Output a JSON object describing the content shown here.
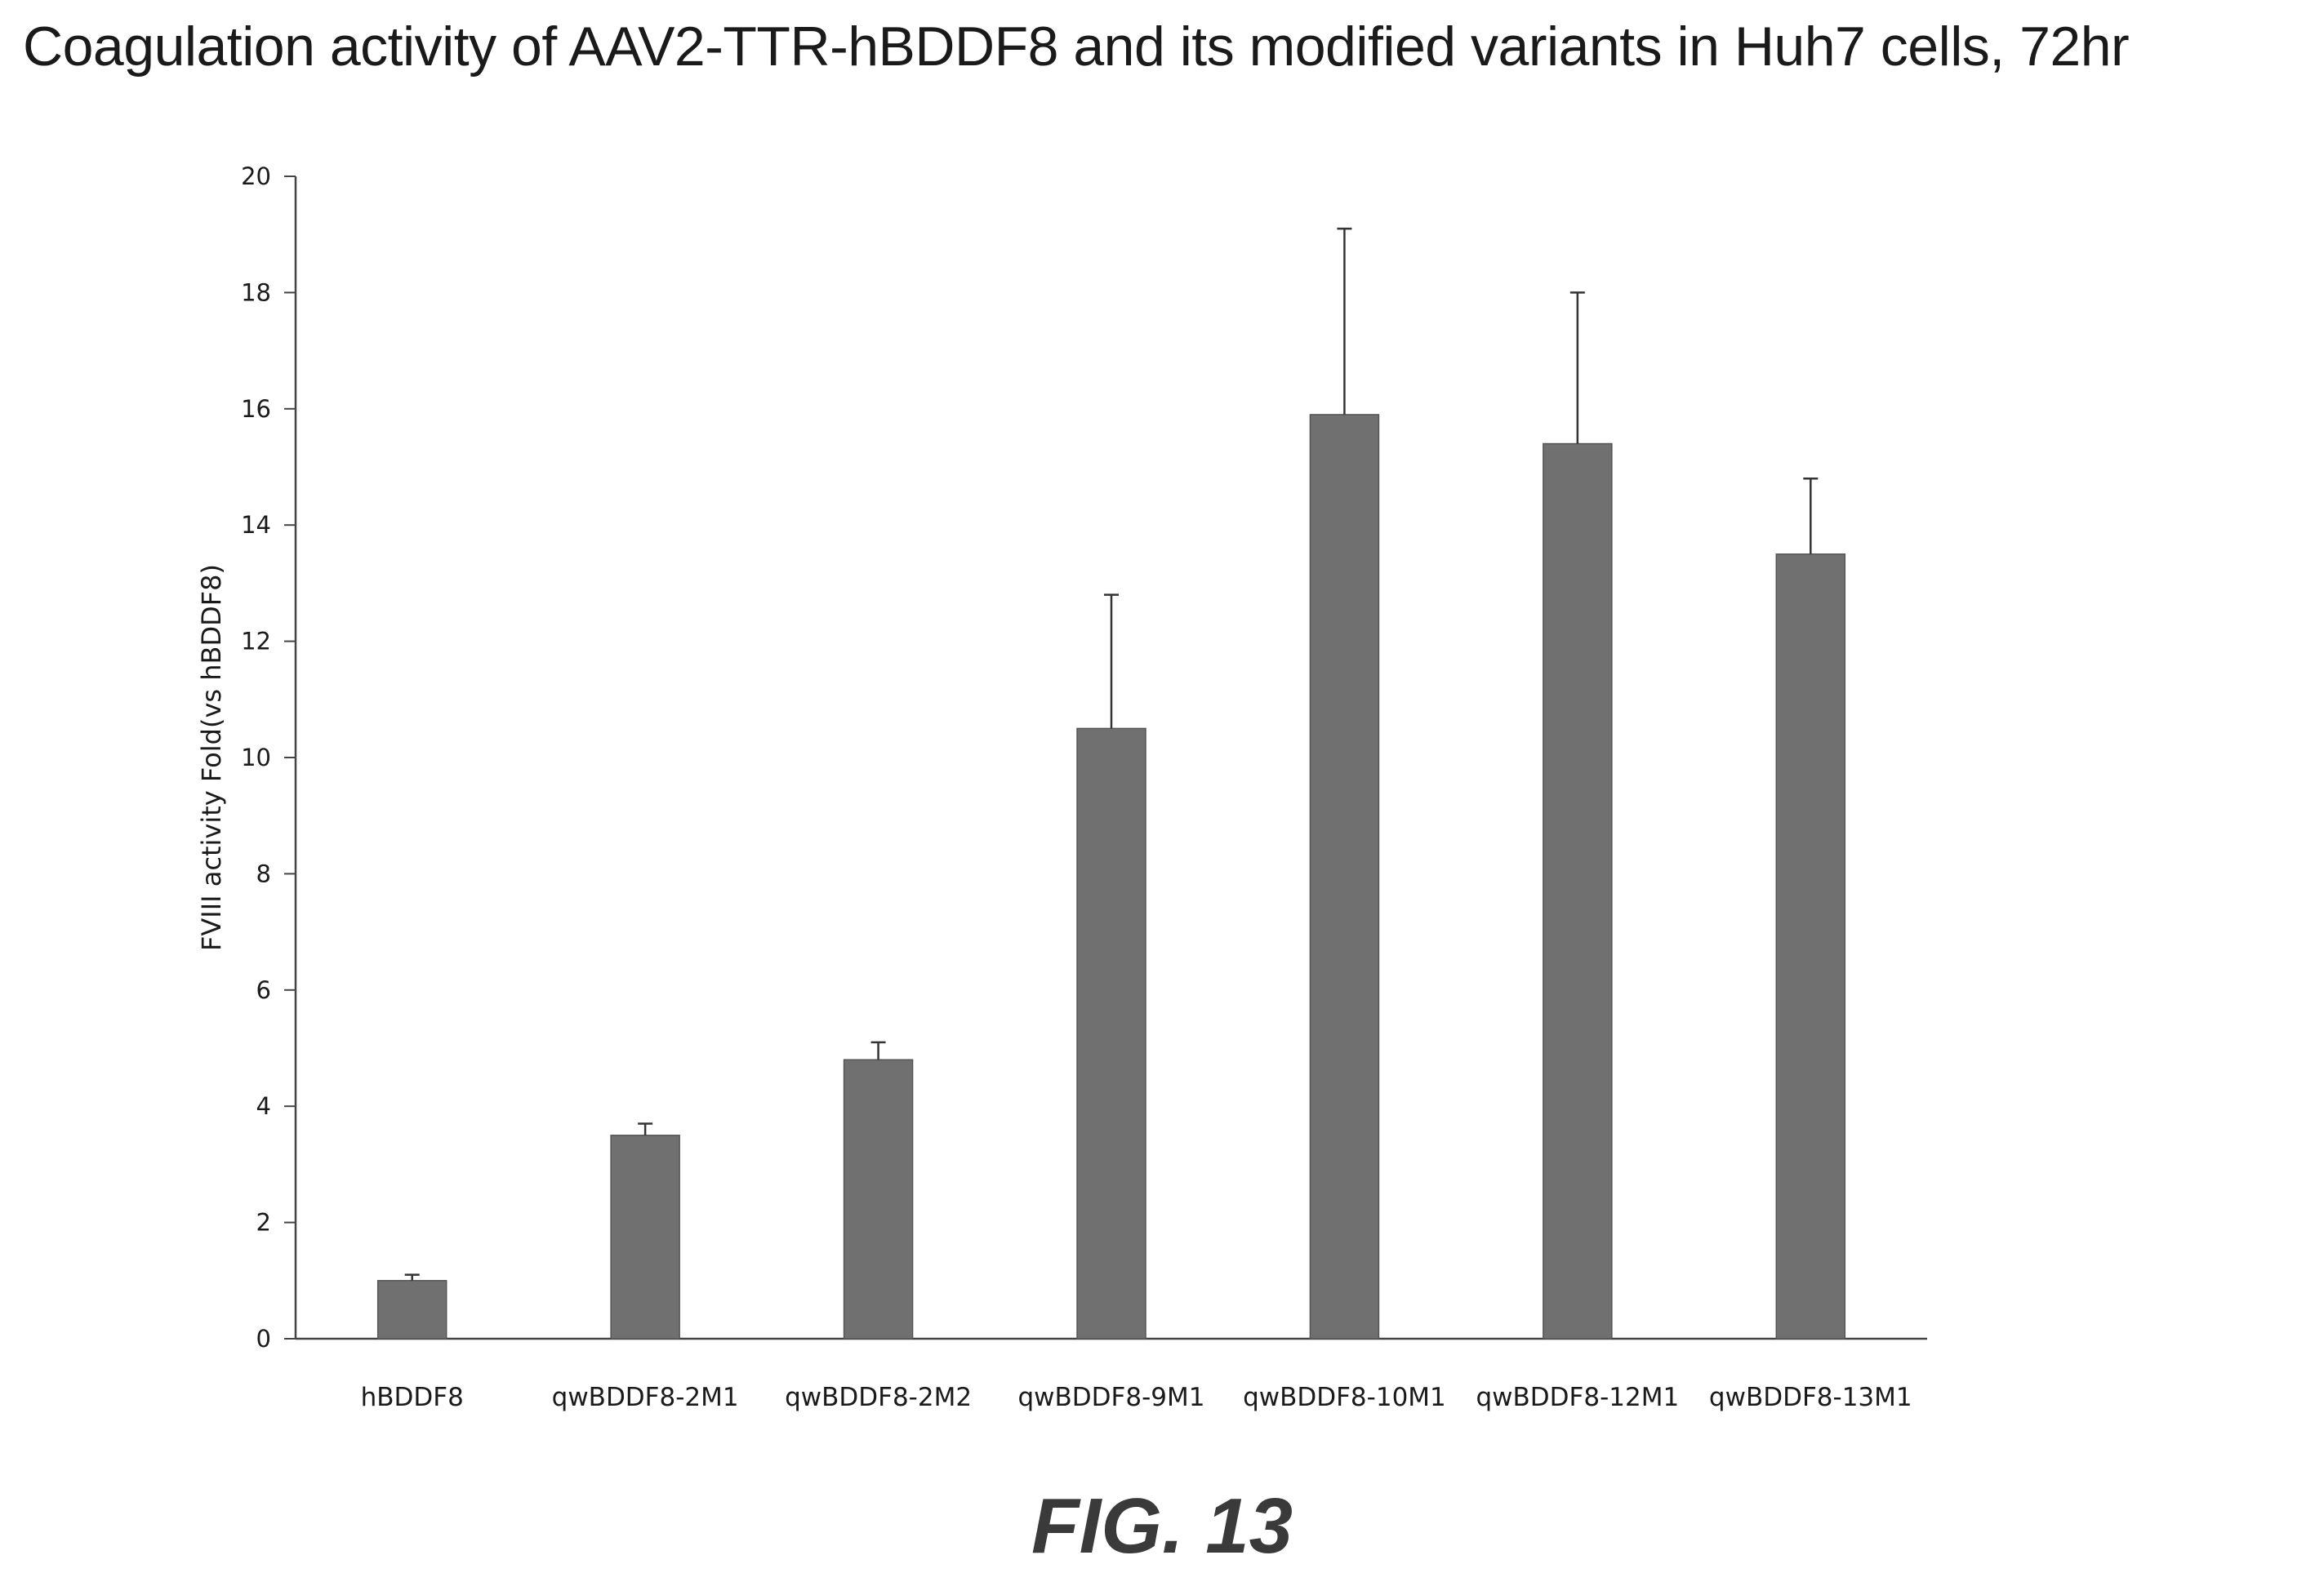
{
  "chart_data": {
    "type": "bar",
    "title": "Coagulation activity of AAV2-TTR-hBDDF8 and its modified variants in Huh7 cells, 72hr",
    "xlabel": "",
    "ylabel": "FVIII activity Fold(vs hBDDF8)",
    "ylim": [
      0,
      20
    ],
    "yticks": [
      "0",
      "2",
      "4",
      "6",
      "8",
      "10",
      "12",
      "14",
      "16",
      "18",
      "20"
    ],
    "categories": [
      "hBDDF8",
      "qwBDDF8-2M1",
      "qwBDDF8-2M2",
      "qwBDDF8-9M1",
      "qwBDDF8-10M1",
      "qwBDDF8-12M1",
      "qwBDDF8-13M1"
    ],
    "values": [
      1.0,
      3.5,
      4.8,
      10.5,
      15.9,
      15.4,
      13.5
    ],
    "errors": [
      0.1,
      0.2,
      0.3,
      2.3,
      3.2,
      2.6,
      1.3
    ],
    "grid": false,
    "legend": "none",
    "bar_color": "#707070"
  },
  "figure": {
    "label": "FIG. 13"
  }
}
